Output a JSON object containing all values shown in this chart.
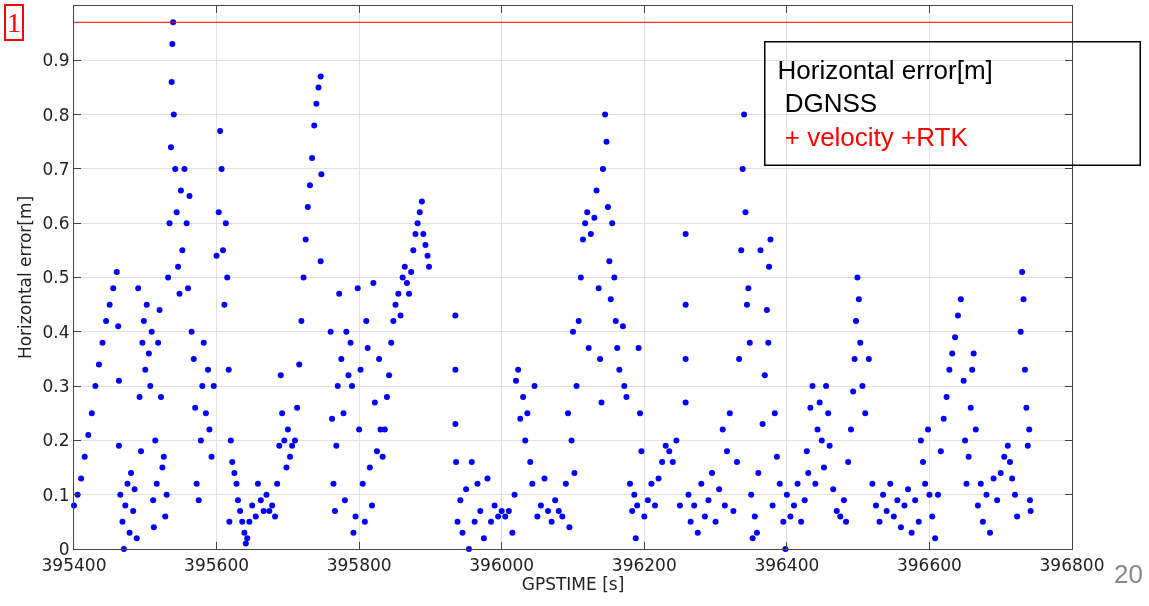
{
  "chart_data": {
    "type": "scatter",
    "xlabel": "GPSTIME [s]",
    "ylabel": "Horizontal error[m]",
    "annotations": [
      "1",
      "Horizontal error[m]",
      "DGNSS",
      "+ velocity +RTK",
      "20"
    ],
    "xlim": [
      395400,
      396800
    ],
    "xticks": [
      395400,
      395600,
      395800,
      396000,
      396200,
      396400,
      396600,
      396800
    ],
    "ylim": [
      0,
      1
    ],
    "yticks": [
      0,
      0.1,
      0.2,
      0.3,
      0.4,
      0.5,
      0.6,
      0.7,
      0.8,
      0.9
    ],
    "grid": true,
    "marker": "circle",
    "ref_lines": [
      {
        "axis": "y",
        "value": 0.97,
        "color": "#ff0000"
      }
    ],
    "series": [
      {
        "color": "#0000ff",
        "x": [
          395400,
          395405,
          395410,
          395415,
          395420,
          395425,
          395430,
          395435,
          395440,
          395445,
          395450,
          395455,
          395460,
          395462,
          395463,
          395463,
          395465,
          395468,
          395470,
          395472,
          395475,
          395478,
          395480,
          395483,
          395485,
          395488,
          395490,
          395492,
          395494,
          395496,
          395498,
          395500,
          395502,
          395505,
          395507,
          395509,
          395511,
          395512,
          395514,
          395516,
          395518,
          395520,
          395522,
          395524,
          395526,
          395528,
          395530,
          395532,
          395534,
          395536,
          395537,
          395538,
          395539,
          395540,
          395542,
          395544,
          395546,
          395548,
          395550,
          395552,
          395555,
          395558,
          395560,
          395562,
          395565,
          395568,
          395570,
          395572,
          395575,
          395578,
          395580,
          395582,
          395585,
          395588,
          395590,
          395593,
          395596,
          395600,
          395603,
          395605,
          395607,
          395609,
          395611,
          395613,
          395615,
          395617,
          395618,
          395620,
          395622,
          395625,
          395628,
          395630,
          395633,
          395636,
          395639,
          395641,
          395643,
          395646,
          395650,
          395655,
          395658,
          395662,
          395666,
          395670,
          395674,
          395678,
          395682,
          395685,
          395688,
          395690,
          395692,
          395695,
          395698,
          395700,
          395703,
          395706,
          395710,
          395713,
          395716,
          395719,
          395722,
          395725,
          395728,
          395731,
          395734,
          395737,
          395740,
          395743,
          395746,
          395747,
          395746,
          395760,
          395762,
          395764,
          395766,
          395768,
          395770,
          395772,
          395775,
          395778,
          395780,
          395782,
          395785,
          395788,
          395790,
          395792,
          395795,
          395798,
          395800,
          395802,
          395805,
          395808,
          395810,
          395812,
          395815,
          395818,
          395820,
          395822,
          395825,
          395828,
          395830,
          395833,
          395836,
          395839,
          395842,
          395845,
          395848,
          395851,
          395855,
          395858,
          395861,
          395864,
          395867,
          395870,
          395873,
          395876,
          395879,
          395882,
          395885,
          395888,
          395890,
          395893,
          395896,
          395898,
          395935,
          395935,
          395935,
          395936,
          395938,
          395942,
          395945,
          395950,
          395954,
          395958,
          395962,
          395966,
          395970,
          395975,
          395980,
          395985,
          395990,
          395995,
          396000,
          396005,
          396010,
          396015,
          396018,
          396020,
          396023,
          396026,
          396030,
          396033,
          396036,
          396040,
          396043,
          396046,
          396050,
          396055,
          396060,
          396065,
          396070,
          396075,
          396080,
          396085,
          396090,
          396093,
          396095,
          396098,
          396100,
          396102,
          396105,
          396108,
          396111,
          396114,
          396117,
          396120,
          396122,
          396125,
          396130,
          396133,
          396136,
          396138,
          396140,
          396142,
          396145,
          396147,
          396149,
          396151,
          396153,
          396155,
          396158,
          396160,
          396162,
          396165,
          396170,
          396172,
          396175,
          396180,
          396183,
          396186,
          396188,
          396190,
          396192,
          396194,
          396196,
          396200,
          396205,
          396210,
          396215,
          396220,
          396225,
          396230,
          396235,
          396240,
          396245,
          396250,
          396258,
          396258,
          396258,
          396258,
          396262,
          396265,
          396270,
          396275,
          396280,
          396285,
          396290,
          396295,
          396300,
          396305,
          396310,
          396313,
          396316,
          396320,
          396325,
          396330,
          396333,
          396336,
          396338,
          396340,
          396342,
          396344,
          396346,
          396348,
          396350,
          396352,
          396355,
          396358,
          396360,
          396363,
          396366,
          396369,
          396372,
          396375,
          396377,
          396374,
          396380,
          396383,
          396386,
          396390,
          396395,
          396398,
          396400,
          396405,
          396410,
          396415,
          396420,
          396425,
          396428,
          396430,
          396433,
          396436,
          396440,
          396443,
          396446,
          396449,
          396452,
          396455,
          396458,
          396460,
          396465,
          396470,
          396475,
          396480,
          396483,
          396486,
          396490,
          396493,
          396495,
          396497,
          396499,
          396501,
          396503,
          396506,
          396510,
          396515,
          396520,
          396525,
          396530,
          396535,
          396540,
          396545,
          396550,
          396555,
          396560,
          396565,
          396570,
          396575,
          396580,
          396585,
          396588,
          396591,
          396594,
          396598,
          396600,
          396604,
          396608,
          396612,
          396616,
          396620,
          396624,
          396628,
          396632,
          396636,
          396640,
          396644,
          396648,
          396650,
          396652,
          396655,
          396658,
          396660,
          396662,
          396665,
          396668,
          396672,
          396675,
          396680,
          396685,
          396690,
          396695,
          396700,
          396705,
          396710,
          396713,
          396716,
          396720,
          396723,
          396728,
          396730,
          396732,
          396734,
          396736,
          396738,
          396740,
          396741,
          396742
        ],
        "values": [
          0.08,
          0.1,
          0.13,
          0.17,
          0.21,
          0.25,
          0.3,
          0.34,
          0.38,
          0.42,
          0.45,
          0.48,
          0.51,
          0.41,
          0.31,
          0.19,
          0.1,
          0.05,
          0.0,
          0.08,
          0.12,
          0.03,
          0.14,
          0.07,
          0.11,
          0.02,
          0.48,
          0.28,
          0.18,
          0.38,
          0.42,
          0.33,
          0.45,
          0.36,
          0.3,
          0.4,
          0.09,
          0.04,
          0.2,
          0.12,
          0.38,
          0.44,
          0.28,
          0.15,
          0.17,
          0.06,
          0.1,
          0.5,
          0.6,
          0.74,
          0.86,
          0.93,
          0.97,
          0.8,
          0.7,
          0.62,
          0.52,
          0.47,
          0.66,
          0.55,
          0.7,
          0.6,
          0.48,
          0.65,
          0.4,
          0.35,
          0.26,
          0.12,
          0.09,
          0.2,
          0.3,
          0.38,
          0.25,
          0.33,
          0.22,
          0.17,
          0.3,
          0.54,
          0.62,
          0.77,
          0.7,
          0.55,
          0.45,
          0.6,
          0.5,
          0.33,
          0.05,
          0.2,
          0.16,
          0.14,
          0.12,
          0.09,
          0.07,
          0.05,
          0.03,
          0.01,
          0.02,
          0.05,
          0.08,
          0.06,
          0.12,
          0.09,
          0.07,
          0.1,
          0.07,
          0.08,
          0.06,
          0.12,
          0.19,
          0.32,
          0.25,
          0.2,
          0.15,
          0.22,
          0.17,
          0.19,
          0.2,
          0.26,
          0.34,
          0.42,
          0.5,
          0.57,
          0.63,
          0.67,
          0.72,
          0.78,
          0.82,
          0.85,
          0.87,
          0.69,
          0.53,
          0.4,
          0.24,
          0.12,
          0.07,
          0.19,
          0.3,
          0.47,
          0.35,
          0.25,
          0.09,
          0.4,
          0.32,
          0.38,
          0.3,
          0.03,
          0.06,
          0.48,
          0.22,
          0.33,
          0.12,
          0.05,
          0.42,
          0.37,
          0.15,
          0.08,
          0.49,
          0.27,
          0.18,
          0.35,
          0.22,
          0.17,
          0.22,
          0.28,
          0.32,
          0.38,
          0.42,
          0.45,
          0.47,
          0.43,
          0.5,
          0.52,
          0.49,
          0.47,
          0.51,
          0.55,
          0.58,
          0.6,
          0.62,
          0.64,
          0.58,
          0.56,
          0.54,
          0.52,
          0.43,
          0.33,
          0.23,
          0.16,
          0.05,
          0.09,
          0.03,
          0.11,
          0.0,
          0.16,
          0.05,
          0.12,
          0.07,
          0.02,
          0.13,
          0.05,
          0.08,
          0.06,
          0.07,
          0.06,
          0.07,
          0.03,
          0.1,
          0.31,
          0.33,
          0.24,
          0.28,
          0.2,
          0.25,
          0.16,
          0.12,
          0.3,
          0.06,
          0.08,
          0.13,
          0.07,
          0.05,
          0.09,
          0.07,
          0.06,
          0.12,
          0.25,
          0.04,
          0.2,
          0.4,
          0.14,
          0.3,
          0.42,
          0.5,
          0.57,
          0.6,
          0.62,
          0.37,
          0.58,
          0.61,
          0.66,
          0.48,
          0.35,
          0.27,
          0.7,
          0.8,
          0.75,
          0.63,
          0.53,
          0.46,
          0.6,
          0.5,
          0.42,
          0.37,
          0.33,
          0.41,
          0.3,
          0.28,
          0.12,
          0.07,
          0.1,
          0.02,
          0.08,
          0.37,
          0.25,
          0.18,
          0.06,
          0.09,
          0.12,
          0.08,
          0.13,
          0.16,
          0.19,
          0.18,
          0.16,
          0.2,
          0.08,
          0.58,
          0.45,
          0.35,
          0.27,
          0.1,
          0.05,
          0.08,
          0.03,
          0.12,
          0.06,
          0.09,
          0.14,
          0.05,
          0.11,
          0.22,
          0.08,
          0.18,
          0.25,
          0.07,
          0.16,
          0.35,
          0.55,
          0.7,
          0.8,
          0.62,
          0.45,
          0.48,
          0.38,
          0.1,
          0.02,
          0.06,
          0.03,
          0.14,
          0.55,
          0.23,
          0.32,
          0.44,
          0.52,
          0.57,
          0.38,
          0.08,
          0.25,
          0.17,
          0.12,
          0.05,
          0.0,
          0.1,
          0.06,
          0.08,
          0.12,
          0.05,
          0.09,
          0.18,
          0.14,
          0.26,
          0.3,
          0.12,
          0.22,
          0.27,
          0.2,
          0.15,
          0.3,
          0.25,
          0.19,
          0.11,
          0.07,
          0.06,
          0.09,
          0.05,
          0.16,
          0.22,
          0.29,
          0.35,
          0.42,
          0.5,
          0.46,
          0.38,
          0.3,
          0.25,
          0.35,
          0.12,
          0.08,
          0.05,
          0.1,
          0.07,
          0.12,
          0.06,
          0.09,
          0.04,
          0.08,
          0.11,
          0.03,
          0.09,
          0.05,
          0.2,
          0.16,
          0.12,
          0.22,
          0.1,
          0.06,
          0.02,
          0.1,
          0.18,
          0.24,
          0.28,
          0.33,
          0.36,
          0.39,
          0.43,
          0.46,
          0.31,
          0.2,
          0.12,
          0.17,
          0.26,
          0.33,
          0.36,
          0.22,
          0.08,
          0.12,
          0.05,
          0.1,
          0.03,
          0.13,
          0.09,
          0.14,
          0.17,
          0.19,
          0.16,
          0.13,
          0.1,
          0.06,
          0.4,
          0.51,
          0.46,
          0.33,
          0.26,
          0.19,
          0.22,
          0.09,
          0.07
        ]
      }
    ]
  }
}
